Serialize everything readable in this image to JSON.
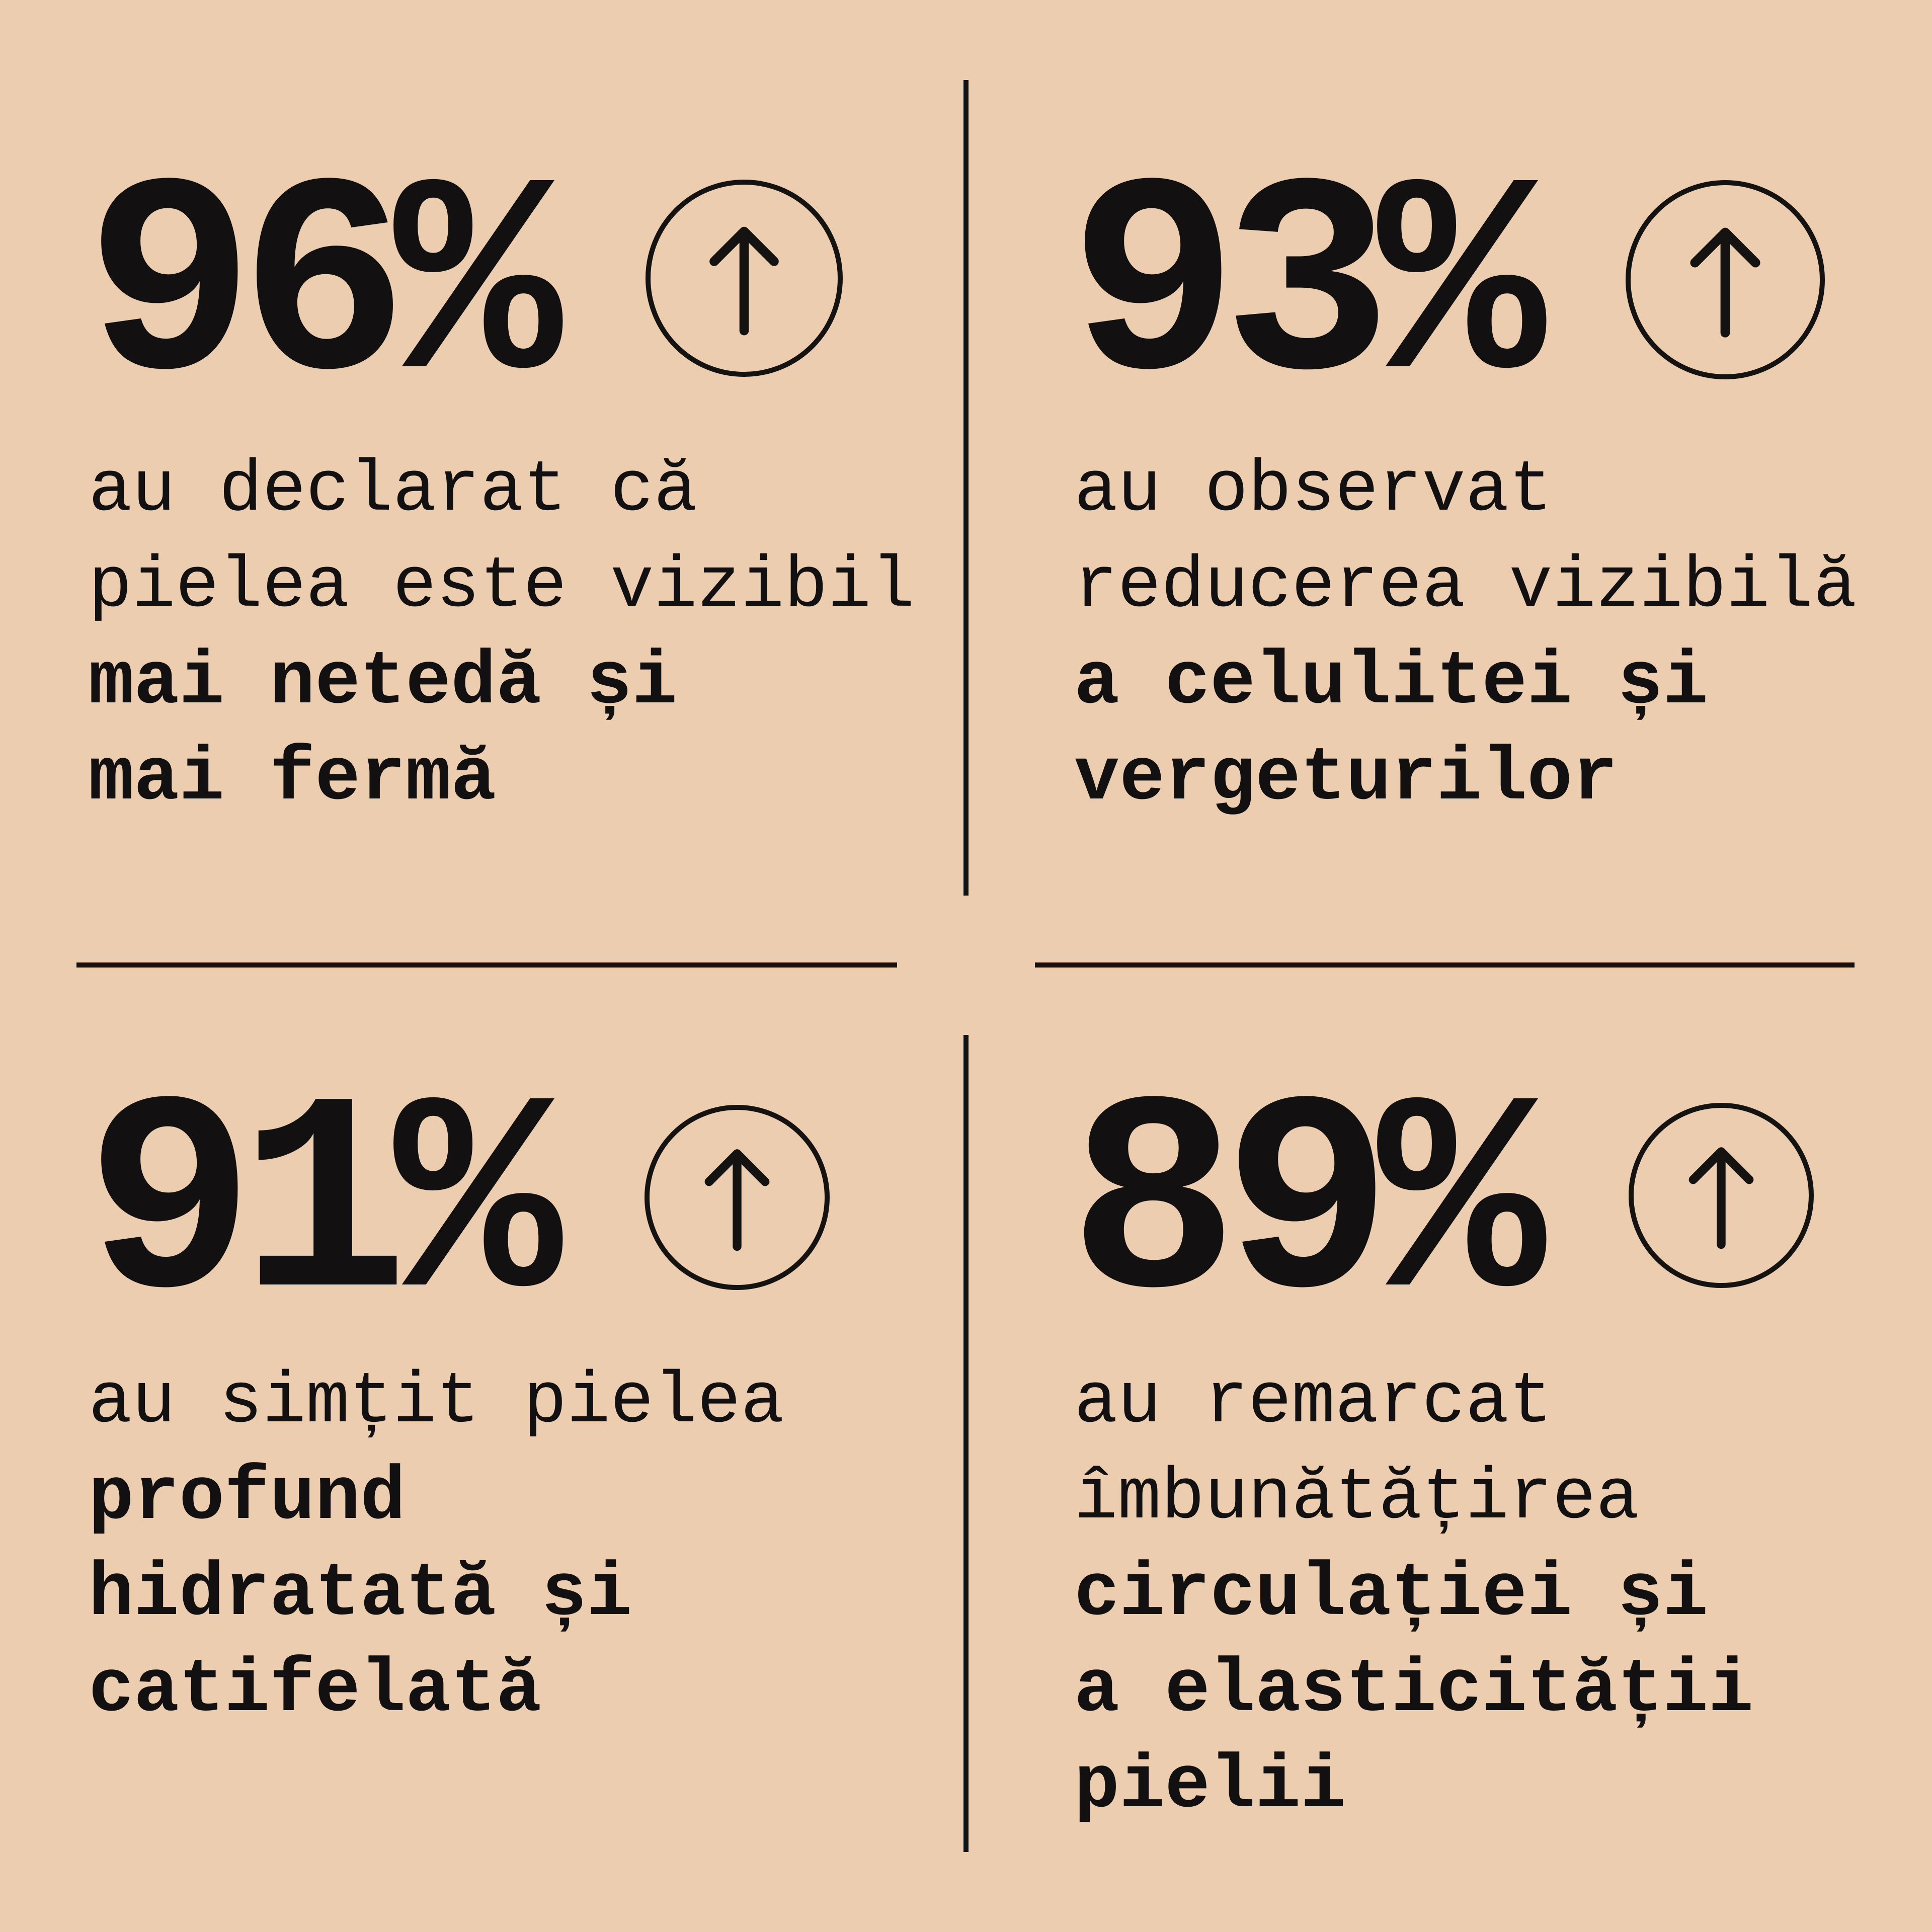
{
  "background_color": "#eccdb0",
  "text_color": "#121010",
  "stats": [
    {
      "value": "96%",
      "icon": "arrow-up-circle-icon",
      "lines": [
        "au declarat că",
        "pielea este vizibil"
      ],
      "bold_lines": [
        "mai netedă și",
        "mai fermă"
      ]
    },
    {
      "value": "93%",
      "icon": "arrow-up-circle-icon",
      "lines": [
        "au observat",
        "reducerea vizibilă"
      ],
      "bold_lines": [
        "a celulitei și",
        "vergeturilor"
      ]
    },
    {
      "value": "91%",
      "icon": "arrow-up-circle-icon",
      "lines": [
        "au simțit pielea"
      ],
      "bold_lines": [
        "profund",
        "hidratată și",
        "catifelată"
      ]
    },
    {
      "value": "89%",
      "icon": "arrow-up-circle-icon",
      "lines": [
        "au remarcat",
        "îmbunătățirea"
      ],
      "bold_lines": [
        "circulației și",
        "a elasticității",
        "pielii"
      ]
    }
  ]
}
